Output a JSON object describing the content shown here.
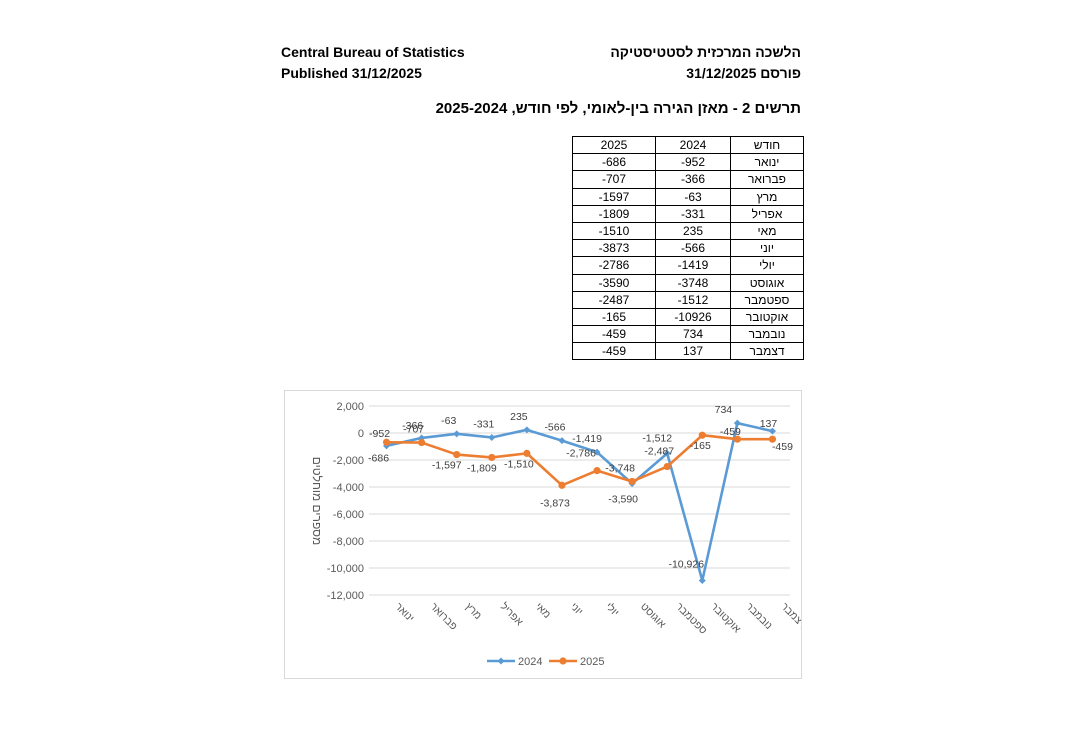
{
  "header": {
    "org_en": "Central Bureau of Statistics",
    "published_en": "Published 31/12/2025",
    "org_he": "הלשכה המרכזית לסטטיסטיקה",
    "published_he": "פורסם 31/12/2025"
  },
  "title": "תרשים 2 - מאזן הגירה בין-לאומי, לפי חודש, 2025-2024",
  "table": {
    "headers": {
      "year_2025": "2025",
      "year_2024": "2024",
      "month": "חודש"
    },
    "rows": [
      {
        "month": "ינואר",
        "y2024": "-952",
        "y2025": "-686"
      },
      {
        "month": "פברואר",
        "y2024": "-366",
        "y2025": "-707"
      },
      {
        "month": "מרץ",
        "y2024": "-63",
        "y2025": "-1597"
      },
      {
        "month": "אפריל",
        "y2024": "-331",
        "y2025": "-1809"
      },
      {
        "month": "מאי",
        "y2024": "235",
        "y2025": "-1510"
      },
      {
        "month": "יוני",
        "y2024": "-566",
        "y2025": "-3873"
      },
      {
        "month": "יולי",
        "y2024": "-1419",
        "y2025": "-2786"
      },
      {
        "month": "אוגוסט",
        "y2024": "-3748",
        "y2025": "-3590"
      },
      {
        "month": "ספטמבר",
        "y2024": "-1512",
        "y2025": "-2487"
      },
      {
        "month": "אוקטובר",
        "y2024": "-10926",
        "y2025": "-165"
      },
      {
        "month": "נובמבר",
        "y2024": "734",
        "y2025": "-459"
      },
      {
        "month": "דצמבר",
        "y2024": "137",
        "y2025": "-459"
      }
    ]
  },
  "chart_data": {
    "type": "line",
    "title": "",
    "xlabel": "",
    "ylabel": "מספרים מוחלטים",
    "categories": [
      "ינואר",
      "פברואר",
      "מרץ",
      "אפריל",
      "מאי",
      "יוני",
      "יולי",
      "אוגוסט",
      "ספטמבר",
      "אוקטובר",
      "נובמבר",
      "דצמבר"
    ],
    "ylim": [
      -12000,
      2000
    ],
    "yticks": [
      2000,
      0,
      -2000,
      -4000,
      -6000,
      -8000,
      -10000,
      -12000
    ],
    "ytick_labels": [
      "2,000",
      "0",
      "-2,000",
      "-4,000",
      "-6,000",
      "-8,000",
      "-10,000",
      "-12,000"
    ],
    "grid": true,
    "legend_position": "bottom",
    "series": [
      {
        "name": "2024",
        "color": "#5B9BD5",
        "marker": "diamond",
        "values": [
          -952,
          -366,
          -63,
          -331,
          235,
          -566,
          -1419,
          -3748,
          -1512,
          -10926,
          734,
          137
        ],
        "labels": [
          "-952",
          "-366",
          "-63",
          "-331",
          "235",
          "-566",
          "-1,419",
          "-3,748",
          "-1,512",
          "-10,926",
          "734",
          "137"
        ]
      },
      {
        "name": "2025",
        "color": "#ED7D31",
        "marker": "circle",
        "values": [
          -686,
          -707,
          -1597,
          -1809,
          -1510,
          -3873,
          -2786,
          -3590,
          -2487,
          -165,
          -459,
          -459
        ],
        "labels": [
          "-686",
          "-707",
          "-1,597",
          "-1,809",
          "-1,510",
          "-3,873",
          "-2,786",
          "-3,590",
          "-2,487",
          "-165",
          "-459",
          "-459"
        ]
      }
    ]
  }
}
